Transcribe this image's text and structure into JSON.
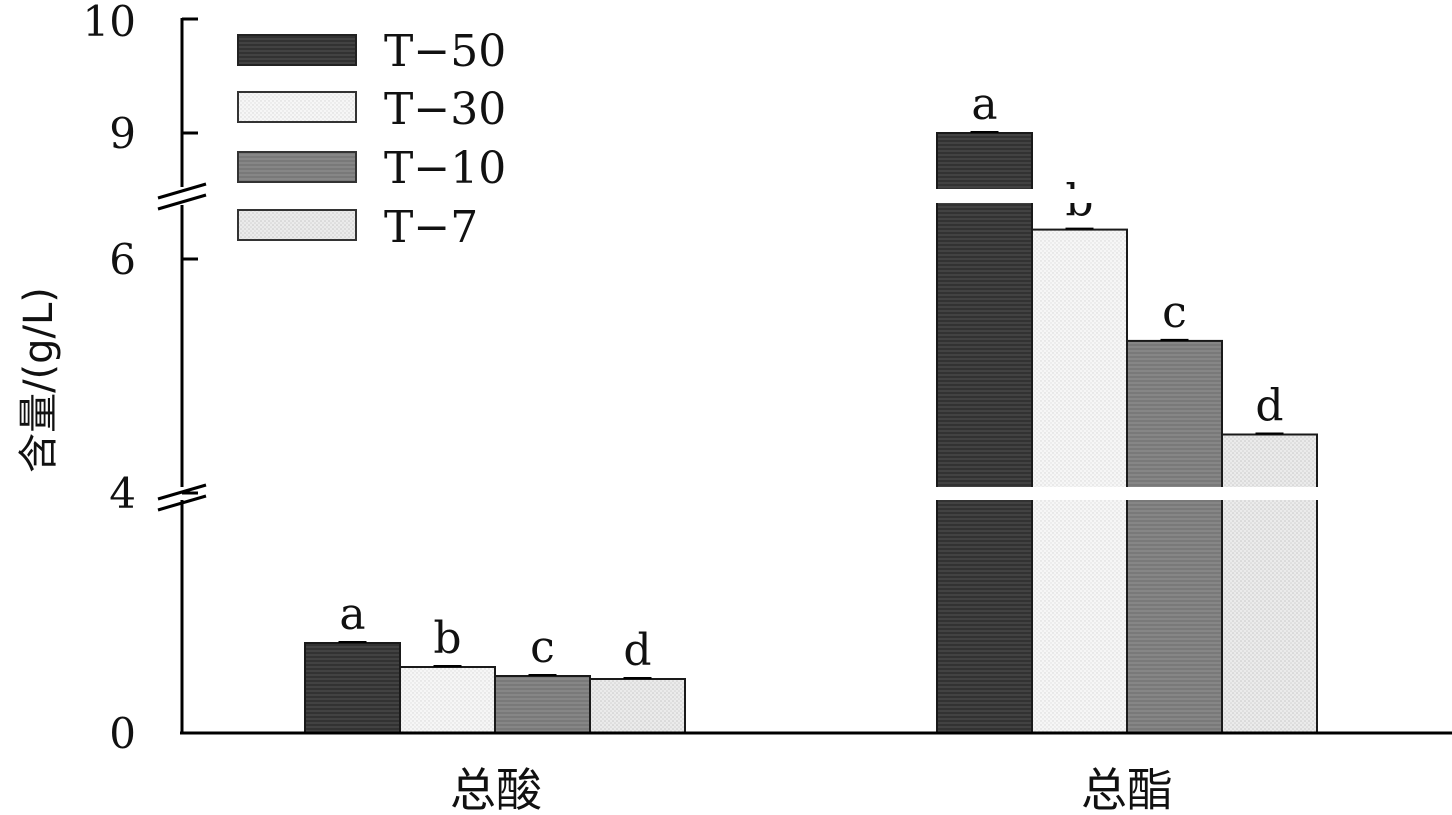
{
  "chart_data": {
    "type": "bar",
    "categories": [
      "总酸",
      "总酯"
    ],
    "series": [
      {
        "name": "T−50",
        "values": [
          1.5,
          9.0
        ],
        "letters": [
          "a",
          "a"
        ],
        "color": "#3a3a3a",
        "pattern": "hlines-dark"
      },
      {
        "name": "T−30",
        "values": [
          1.1,
          6.7
        ],
        "letters": [
          "b",
          "b"
        ],
        "color": "#f4f4f4",
        "pattern": "dots-light"
      },
      {
        "name": "T−10",
        "values": [
          0.95,
          5.3
        ],
        "letters": [
          "c",
          "c"
        ],
        "color": "#7f7f7f",
        "pattern": "hlines-gray"
      },
      {
        "name": "T−7",
        "values": [
          0.9,
          4.5
        ],
        "letters": [
          "d",
          "d"
        ],
        "color": "#e8e8e8",
        "pattern": "dots-gray"
      }
    ],
    "ylabel": "含量/(g/L)",
    "xlabel": "",
    "title": "",
    "y_ticks": [
      "0",
      "4",
      "6",
      "9",
      "10"
    ],
    "y_axis_break": [
      [
        4,
        6
      ],
      [
        6.8,
        9
      ]
    ],
    "ylim": [
      0,
      10
    ],
    "legend_position": "top-left",
    "grid": false
  }
}
